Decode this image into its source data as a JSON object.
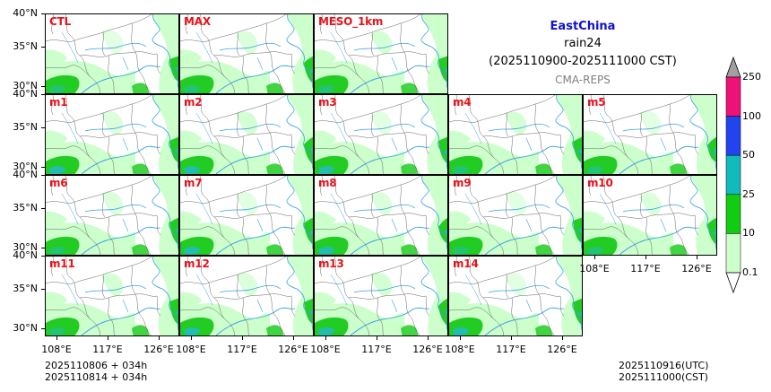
{
  "title": {
    "region": "EastChina",
    "variable": "rain24",
    "period": "(2025110900-2025111000 CST)",
    "source": "CMA-REPS"
  },
  "panels": [
    {
      "label": "CTL",
      "row": 0,
      "col": 0
    },
    {
      "label": "MAX",
      "row": 0,
      "col": 1
    },
    {
      "label": "MESO_1km",
      "row": 0,
      "col": 2
    },
    {
      "label": "m1",
      "row": 1,
      "col": 0
    },
    {
      "label": "m2",
      "row": 1,
      "col": 1
    },
    {
      "label": "m3",
      "row": 1,
      "col": 2
    },
    {
      "label": "m4",
      "row": 1,
      "col": 3
    },
    {
      "label": "m5",
      "row": 1,
      "col": 4
    },
    {
      "label": "m6",
      "row": 2,
      "col": 0
    },
    {
      "label": "m7",
      "row": 2,
      "col": 1
    },
    {
      "label": "m8",
      "row": 2,
      "col": 2
    },
    {
      "label": "m9",
      "row": 2,
      "col": 3
    },
    {
      "label": "m10",
      "row": 2,
      "col": 4
    },
    {
      "label": "m11",
      "row": 3,
      "col": 0
    },
    {
      "label": "m12",
      "row": 3,
      "col": 1
    },
    {
      "label": "m13",
      "row": 3,
      "col": 2
    },
    {
      "label": "m14",
      "row": 3,
      "col": 3
    }
  ],
  "axes": {
    "y_ticks": [
      "40°N",
      "35°N",
      "30°N"
    ],
    "x_ticks": [
      "108°E",
      "117°E",
      "126°E"
    ]
  },
  "colorbar": {
    "levels": [
      "0.1",
      "10",
      "25",
      "50",
      "100",
      "250"
    ],
    "colors": [
      "#ccffcc",
      "#11cc11",
      "#11bbbb",
      "#2244ee",
      "#ee1177"
    ],
    "extend_color": "#a0a0a0"
  },
  "colors": {
    "light_green": "#ccffcc",
    "green": "#22cc22",
    "cyan": "#22bbbb",
    "blue": "#2244ee",
    "river": "#3aa0e8",
    "border": "#555555",
    "label_red": "#e8121b"
  },
  "footer": {
    "init_utc": "2025110806  +  034h",
    "init_cst": "2025110814  +  034h",
    "valid_utc": "2025110916(UTC)",
    "valid_cst": "2025111000(CST)"
  }
}
